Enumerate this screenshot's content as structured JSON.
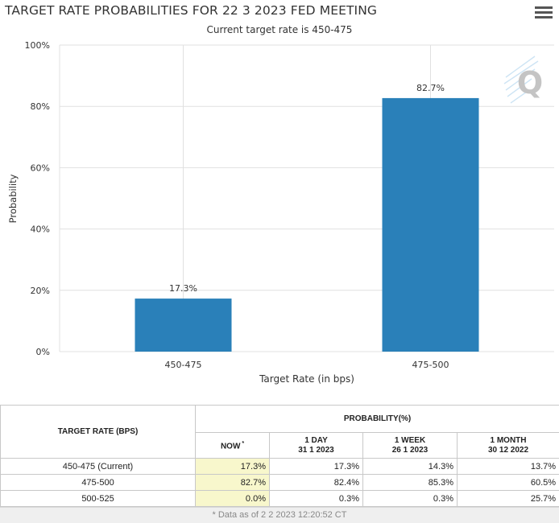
{
  "header": {
    "title": "TARGET RATE PROBABILITIES FOR 22 3 2023 FED MEETING",
    "subtitle": "Current target rate is 450-475",
    "menu_icon": "hamburger-menu-icon"
  },
  "logo": {
    "letter": "Q",
    "icon": "cme-q-logo-icon"
  },
  "chart_data": {
    "type": "bar",
    "title": "TARGET RATE PROBABILITIES FOR 22 3 2023 FED MEETING",
    "subtitle": "Current target rate is 450-475",
    "categories": [
      "450-475",
      "475-500"
    ],
    "values": [
      17.3,
      82.7
    ],
    "data_labels": [
      "17.3%",
      "82.7%"
    ],
    "xlabel": "Target Rate (in bps)",
    "ylabel": "Probability",
    "ylim": [
      0,
      100
    ],
    "yticks": [
      0,
      20,
      40,
      60,
      80,
      100
    ],
    "ytick_labels": [
      "0%",
      "20%",
      "40%",
      "60%",
      "80%",
      "100%"
    ],
    "grid": true,
    "bar_color": "#2a80b9",
    "grid_color": "#e0e0e0"
  },
  "table": {
    "col_rate": "TARGET RATE (BPS)",
    "col_prob": "PROBABILITY(%)",
    "sub": [
      {
        "l1": "NOW",
        "l2": "",
        "mark": "*"
      },
      {
        "l1": "1 DAY",
        "l2": "31 1 2023",
        "mark": ""
      },
      {
        "l1": "1 WEEK",
        "l2": "26 1 2023",
        "mark": ""
      },
      {
        "l1": "1 MONTH",
        "l2": "30 12 2022",
        "mark": ""
      }
    ],
    "rows": [
      {
        "rate": "450-475 (Current)",
        "now": "17.3%",
        "day": "17.3%",
        "week": "14.3%",
        "month": "13.7%"
      },
      {
        "rate": "475-500",
        "now": "82.7%",
        "day": "82.4%",
        "week": "85.3%",
        "month": "60.5%"
      },
      {
        "rate": "500-525",
        "now": "0.0%",
        "day": "0.3%",
        "week": "0.3%",
        "month": "25.7%"
      }
    ],
    "footnote": "* Data as of 2 2 2023 12:20:52 CT",
    "now_highlight": "#f8f7cc"
  }
}
